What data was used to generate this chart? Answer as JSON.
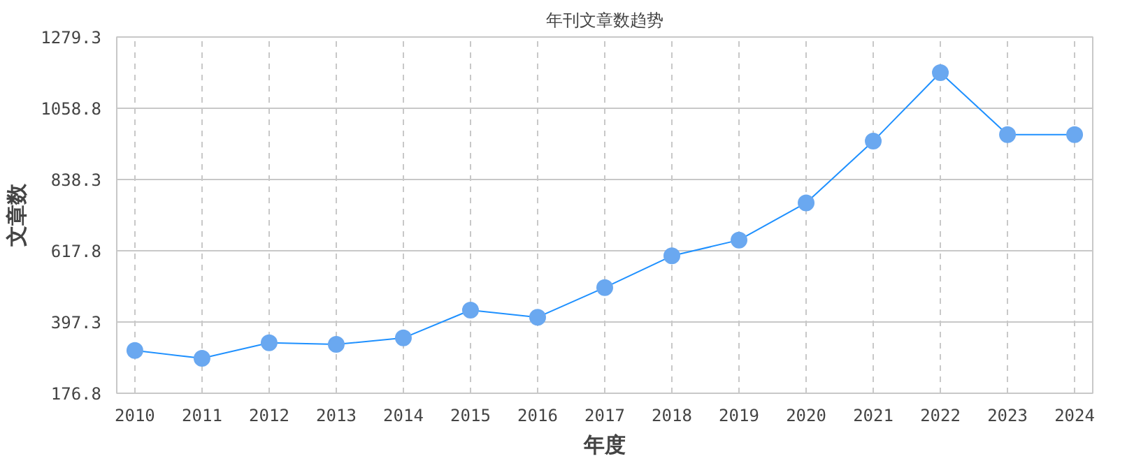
{
  "chart_data": {
    "type": "line",
    "title": "年刊文章数趋势",
    "xlabel": "年度",
    "ylabel": "文章数",
    "categories": [
      "2010",
      "2011",
      "2012",
      "2013",
      "2014",
      "2015",
      "2016",
      "2017",
      "2018",
      "2019",
      "2020",
      "2021",
      "2022",
      "2023",
      "2024"
    ],
    "series": [
      {
        "color": "#1e90ff",
        "values": [
          309,
          285,
          333,
          328,
          348,
          434,
          412,
          504,
          602,
          651,
          766,
          957,
          1169,
          977,
          977
        ]
      }
    ],
    "ylim": [
      176.8,
      1279.3
    ],
    "yticks": [
      176.8,
      397.3,
      617.8,
      838.3,
      1058.8,
      1279.3
    ],
    "grid": true,
    "marker": "circle",
    "line_style": "solid"
  }
}
